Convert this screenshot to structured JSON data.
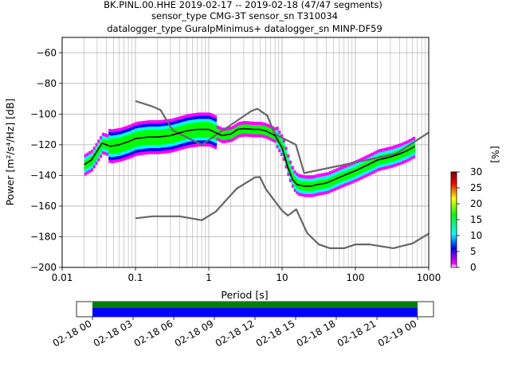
{
  "chart_data": {
    "type": "heatmap",
    "title_lines": [
      "BK.PINL.00.HHE   2019-02-17 -- 2019-02-18  (47/47 segments)",
      "sensor_type CMG-3T sensor_sn T310034",
      "datalogger_type GuralpMinimus+ datalogger_sn MINP-DF59"
    ],
    "xlabel": "Period [s]",
    "ylabel": "Power [m²/s⁴/Hz] [dB]",
    "xscale": "log",
    "xlim": [
      0.01,
      1000
    ],
    "ylim": [
      -200,
      -50
    ],
    "x_tick_labels": [
      "0.01",
      "0.1",
      "1",
      "10",
      "100",
      "1000"
    ],
    "y_tick_labels": [
      "−60",
      "−80",
      "−100",
      "−120",
      "−140",
      "−160",
      "−180",
      "−200"
    ],
    "grid": true,
    "colorbar": {
      "label": "[%]",
      "range": [
        0,
        30
      ],
      "tick_labels": [
        "0",
        "5",
        "10",
        "15",
        "20",
        "25",
        "30"
      ],
      "colormap": [
        "#ffffff",
        "#ff00ff",
        "#0000ff",
        "#00ffff",
        "#00ff00",
        "#ffff00",
        "#ff0000",
        "#800000"
      ]
    },
    "series": [
      {
        "role": "noise-model-high",
        "color": "#666666",
        "x": [
          0.1,
          0.17,
          0.22,
          0.32,
          0.8,
          3.8,
          4.6,
          6.3,
          7.9,
          15.4,
          20,
          354.8,
          1000
        ],
        "y": [
          -91.5,
          -95,
          -97.4,
          -110.5,
          -120,
          -98,
          -96.5,
          -101,
          -113,
          -120,
          -138.5,
          -126,
          -112
        ]
      },
      {
        "role": "noise-model-low",
        "color": "#666666",
        "x": [
          0.1,
          0.17,
          0.4,
          0.8,
          1.24,
          2.4,
          4.3,
          5,
          6,
          10,
          12,
          15.6,
          21.9,
          31.6,
          45,
          70,
          101,
          154,
          328,
          600,
          1000
        ],
        "y": [
          -168,
          -166.7,
          -166.7,
          -169.2,
          -163.7,
          -148.6,
          -141.2,
          -141.1,
          -149,
          -163,
          -166.2,
          -162.1,
          -177.5,
          -185,
          -187.5,
          -187.5,
          -185,
          -185,
          -187.5,
          -184.4,
          -178
        ]
      },
      {
        "role": "psd-mean",
        "color": "#000000",
        "x": [
          0.02,
          0.025,
          0.03,
          0.035,
          0.045,
          0.06,
          0.08,
          0.1,
          0.15,
          0.2,
          0.3,
          0.5,
          0.7,
          1,
          1.5,
          2,
          2.5,
          3,
          4,
          5,
          6,
          8,
          10,
          12,
          14,
          16,
          20,
          25,
          30,
          40,
          50,
          70,
          100,
          150,
          200,
          300,
          400,
          500,
          650
        ],
        "y": [
          -133,
          -130,
          -124,
          -119,
          -121,
          -120,
          -118,
          -116,
          -115,
          -115,
          -114,
          -111,
          -110,
          -110,
          -114,
          -113,
          -110,
          -109.5,
          -110,
          -110,
          -111,
          -114,
          -122,
          -135,
          -143,
          -146,
          -147,
          -147,
          -146,
          -145,
          -143,
          -140,
          -137,
          -133,
          -130,
          -128,
          -126,
          -124,
          -121
        ]
      }
    ],
    "timeline": {
      "tick_labels": [
        "02-18 00",
        "02-18 03",
        "02-18 06",
        "02-18 09",
        "02-18 12",
        "02-18 15",
        "02-18 18",
        "02-18 21",
        "02-19 00"
      ],
      "bar_colors": [
        "#008000",
        "#0000ff"
      ]
    }
  }
}
